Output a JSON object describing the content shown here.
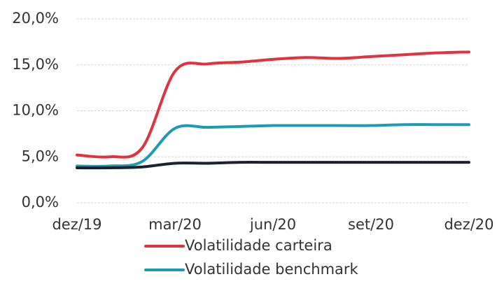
{
  "chart_data": {
    "type": "line",
    "categories": [
      "dez/19",
      null,
      null,
      "mar/20",
      null,
      null,
      "jun/20",
      null,
      null,
      "set/20",
      null,
      null,
      "dez/20"
    ],
    "series": [
      {
        "name": "Volatilidade carteira",
        "color": "#e0323f",
        "values": [
          5.2,
          5.0,
          6.0,
          14.3,
          15.1,
          15.3,
          15.6,
          15.8,
          15.7,
          15.9,
          16.1,
          16.3,
          16.4
        ]
      },
      {
        "name": "Volatilidade benchmark",
        "color": "#1c9bb3",
        "values": [
          4.0,
          4.0,
          4.5,
          8.1,
          8.2,
          8.3,
          8.4,
          8.4,
          8.4,
          8.4,
          8.5,
          8.5,
          8.5
        ]
      },
      {
        "color": "#1b2233",
        "values": [
          3.8,
          3.8,
          3.9,
          4.3,
          4.3,
          4.4,
          4.4,
          4.4,
          4.4,
          4.4,
          4.4,
          4.4,
          4.4
        ]
      }
    ],
    "ylim": [
      0,
      20
    ],
    "yticks": [
      {
        "value": 0,
        "label": "0,0%"
      },
      {
        "value": 5,
        "label": "5,0%"
      },
      {
        "value": 10,
        "label": "10,0%"
      },
      {
        "value": 15,
        "label": "15,0%"
      },
      {
        "value": 20,
        "label": "20,0%"
      }
    ],
    "grid": true,
    "legend": "bottom"
  }
}
